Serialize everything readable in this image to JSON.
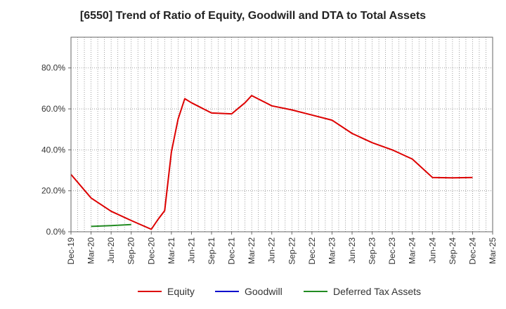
{
  "chart_data": {
    "type": "line",
    "title": "[6550]  Trend of Ratio of Equity, Goodwill and DTA to Total Assets",
    "xlabel": "",
    "ylabel": "",
    "x_ticks": [
      "Dec-19",
      "Mar-20",
      "Jun-20",
      "Sep-20",
      "Dec-20",
      "Mar-21",
      "Jun-21",
      "Sep-21",
      "Dec-21",
      "Mar-22",
      "Jun-22",
      "Sep-22",
      "Dec-22",
      "Mar-23",
      "Jun-23",
      "Sep-23",
      "Dec-23",
      "Mar-24",
      "Jun-24",
      "Sep-24",
      "Dec-24",
      "Mar-25"
    ],
    "y_ticks": [
      "0.0%",
      "20.0%",
      "40.0%",
      "60.0%",
      "80.0%"
    ],
    "ylim": [
      0,
      95
    ],
    "y_unit": "%",
    "grid": true,
    "legend_position": "bottom",
    "series": [
      {
        "name": "Equity",
        "color": "#dd0000",
        "points": [
          [
            "Dec-19",
            28.0
          ],
          [
            "Mar-20",
            16.5
          ],
          [
            "Jun-20",
            10.0
          ],
          [
            "Sep-20",
            5.5
          ],
          [
            "Dec-20",
            1.2
          ],
          [
            "Jan-21",
            6.0
          ],
          [
            "Feb-21",
            10.3
          ],
          [
            "Mar-21",
            39.0
          ],
          [
            "Apr-21",
            55.0
          ],
          [
            "May-21",
            65.0
          ],
          [
            "Jun-21",
            63.0
          ],
          [
            "Sep-21",
            58.0
          ],
          [
            "Dec-21",
            57.6
          ],
          [
            "Feb-22",
            63.0
          ],
          [
            "Mar-22",
            66.5
          ],
          [
            "Jun-22",
            61.5
          ],
          [
            "Sep-22",
            59.5
          ],
          [
            "Dec-22",
            57.0
          ],
          [
            "Mar-23",
            54.5
          ],
          [
            "Jun-23",
            48.0
          ],
          [
            "Sep-23",
            43.5
          ],
          [
            "Dec-23",
            40.0
          ],
          [
            "Mar-24",
            35.5
          ],
          [
            "Jun-24",
            26.5
          ],
          [
            "Sep-24",
            26.3
          ],
          [
            "Dec-24",
            26.5
          ]
        ]
      },
      {
        "name": "Goodwill",
        "color": "#0000cc",
        "points": []
      },
      {
        "name": "Deferred Tax Assets",
        "color": "#228B22",
        "points": [
          [
            "Mar-20",
            2.6
          ],
          [
            "Jun-20",
            3.0
          ],
          [
            "Sep-20",
            3.5
          ]
        ]
      }
    ]
  }
}
